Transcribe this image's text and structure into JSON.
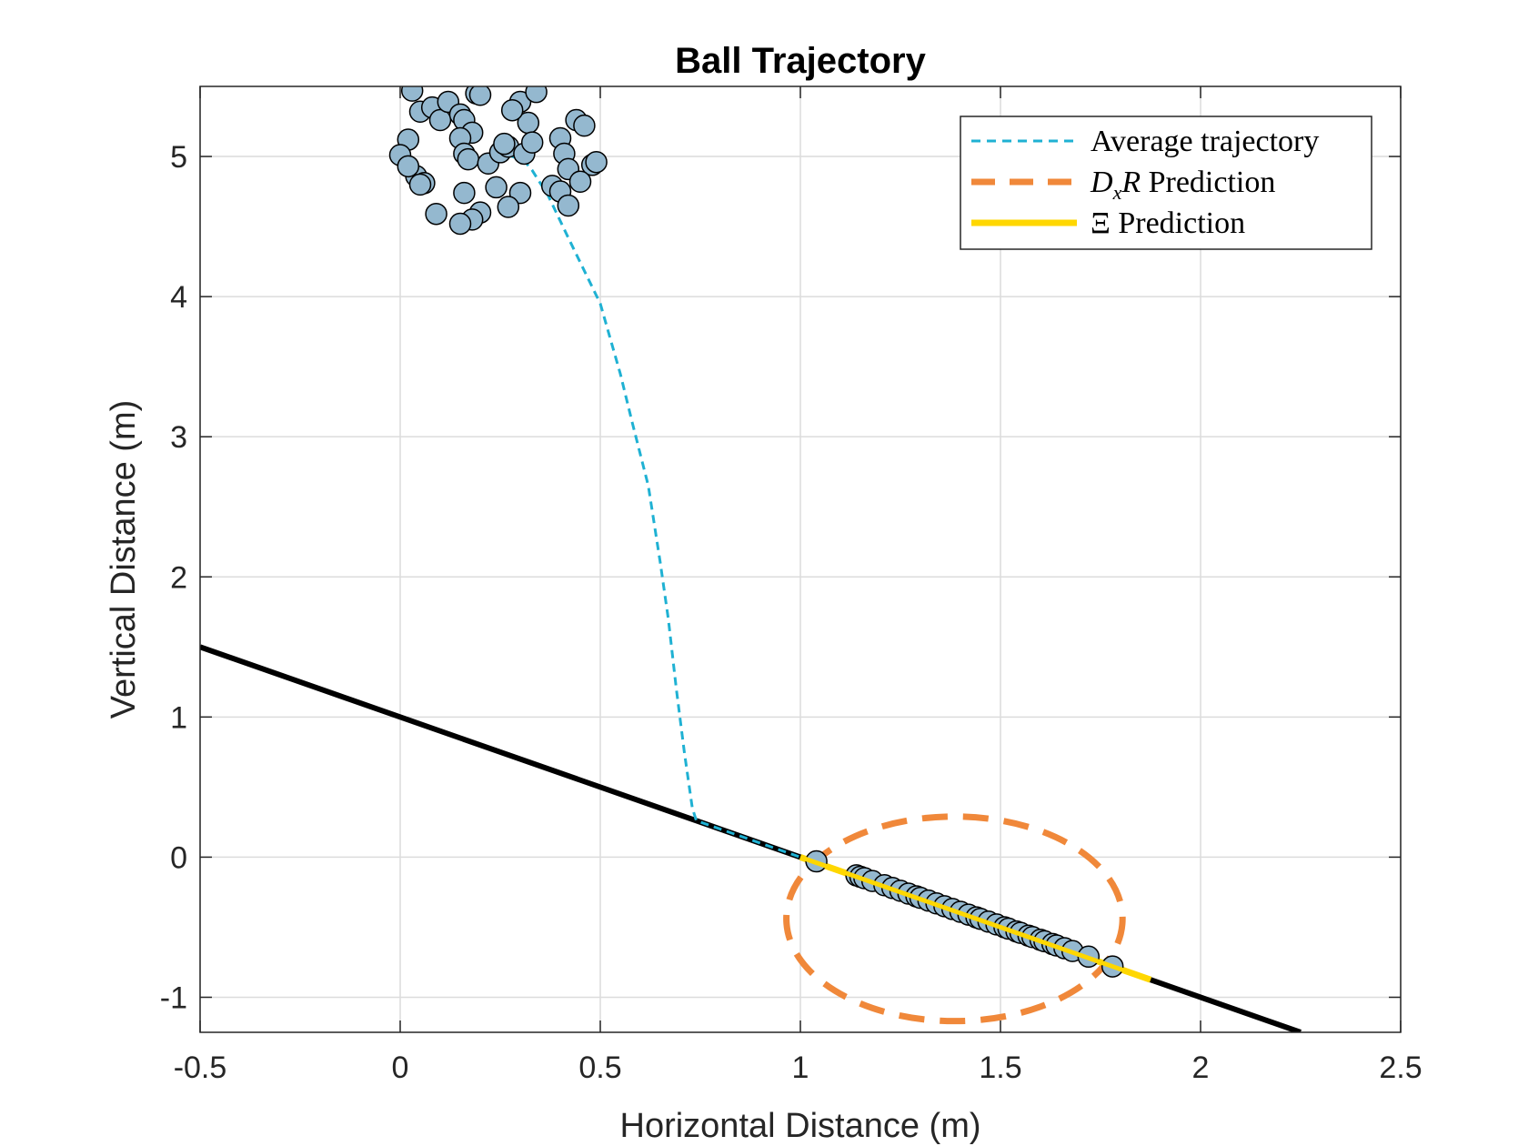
{
  "chart_data": {
    "type": "scatter",
    "title": "Ball Trajectory",
    "xlabel": "Horizontal Distance (m)",
    "ylabel": "Vertical Distance (m)",
    "xlim": [
      -0.5,
      2.5
    ],
    "ylim": [
      -1.25,
      5.5
    ],
    "xticks": [
      -0.5,
      0,
      0.5,
      1,
      1.5,
      2,
      2.5
    ],
    "xtick_labels": [
      "-0.5",
      "0",
      "0.5",
      "1",
      "1.5",
      "2",
      "2.5"
    ],
    "yticks": [
      -1,
      0,
      1,
      2,
      3,
      4,
      5
    ],
    "ytick_labels": [
      "-1",
      "0",
      "1",
      "2",
      "3",
      "4",
      "5"
    ],
    "grid": true,
    "legend_position": "top-right",
    "colors": {
      "average": "#1fb1d3",
      "dxr": "#f0883a",
      "xi": "#ffd700",
      "ramp": "#000000",
      "marker_fill": "#94b8cf",
      "marker_edge": "#000000"
    },
    "legend": [
      {
        "label": "Average trajectory",
        "style": "dotted"
      },
      {
        "label": "DxR Prediction",
        "style": "dashed"
      },
      {
        "label": "Ξ Prediction",
        "style": "solid"
      }
    ],
    "ramp_line": {
      "x": [
        -0.5,
        2.25
      ],
      "y": [
        1.5,
        -1.25
      ]
    },
    "average_trajectory": {
      "x": [
        0.24,
        0.28,
        0.31,
        0.33,
        0.37,
        0.42,
        0.5,
        0.55,
        0.58,
        0.62,
        0.65,
        0.67,
        0.69,
        0.71,
        0.73,
        0.74,
        0.8,
        0.88,
        0.94,
        1.0
      ],
      "y": [
        5.02,
        5.0,
        4.97,
        4.9,
        4.72,
        4.42,
        3.95,
        3.45,
        3.1,
        2.65,
        2.1,
        1.7,
        1.2,
        0.75,
        0.35,
        0.26,
        0.2,
        0.12,
        0.06,
        0.0
      ]
    },
    "dxr_ellipse": {
      "cx": 1.385,
      "cy": -0.44,
      "rx": 0.42,
      "ry": 0.73
    },
    "xi_prediction": {
      "x": [
        1.0,
        1.875
      ],
      "y": [
        0.0,
        -0.875
      ]
    },
    "initial_points": {
      "x": [
        0.03,
        0.05,
        0.08,
        0.1,
        0.12,
        0.15,
        0.16,
        0.18,
        0.19,
        0.2,
        0.02,
        0.0,
        0.04,
        0.06,
        0.15,
        0.16,
        0.17,
        0.22,
        0.25,
        0.27,
        0.3,
        0.32,
        0.34,
        0.28,
        0.26,
        0.31,
        0.33,
        0.4,
        0.41,
        0.44,
        0.46,
        0.42,
        0.48,
        0.49,
        0.38,
        0.4,
        0.42,
        0.45,
        0.3,
        0.27,
        0.24,
        0.2,
        0.18,
        0.15,
        0.09,
        0.05,
        0.02,
        0.16
      ],
      "y": [
        5.47,
        5.32,
        5.35,
        5.26,
        5.39,
        5.3,
        5.26,
        5.17,
        5.45,
        5.44,
        5.12,
        5.01,
        4.86,
        4.81,
        5.13,
        5.02,
        4.98,
        4.95,
        5.03,
        5.07,
        5.39,
        5.24,
        5.46,
        5.33,
        5.09,
        5.02,
        5.1,
        5.13,
        5.02,
        5.26,
        5.22,
        4.91,
        4.94,
        4.96,
        4.79,
        4.75,
        4.65,
        4.82,
        4.74,
        4.64,
        4.78,
        4.6,
        4.55,
        4.52,
        4.59,
        4.8,
        4.93,
        4.74
      ]
    },
    "final_points": {
      "x": [
        1.04,
        1.14,
        1.15,
        1.16,
        1.18,
        1.21,
        1.23,
        1.25,
        1.27,
        1.29,
        1.3,
        1.32,
        1.34,
        1.36,
        1.38,
        1.4,
        1.42,
        1.44,
        1.45,
        1.47,
        1.49,
        1.51,
        1.52,
        1.54,
        1.55,
        1.57,
        1.58,
        1.6,
        1.61,
        1.63,
        1.64,
        1.66,
        1.68,
        1.72,
        1.78
      ],
      "y": [
        -0.03,
        -0.13,
        -0.14,
        -0.15,
        -0.17,
        -0.2,
        -0.22,
        -0.24,
        -0.26,
        -0.28,
        -0.29,
        -0.31,
        -0.33,
        -0.35,
        -0.37,
        -0.39,
        -0.41,
        -0.43,
        -0.44,
        -0.46,
        -0.48,
        -0.5,
        -0.51,
        -0.53,
        -0.54,
        -0.56,
        -0.57,
        -0.59,
        -0.6,
        -0.62,
        -0.63,
        -0.65,
        -0.67,
        -0.71,
        -0.78
      ]
    }
  }
}
